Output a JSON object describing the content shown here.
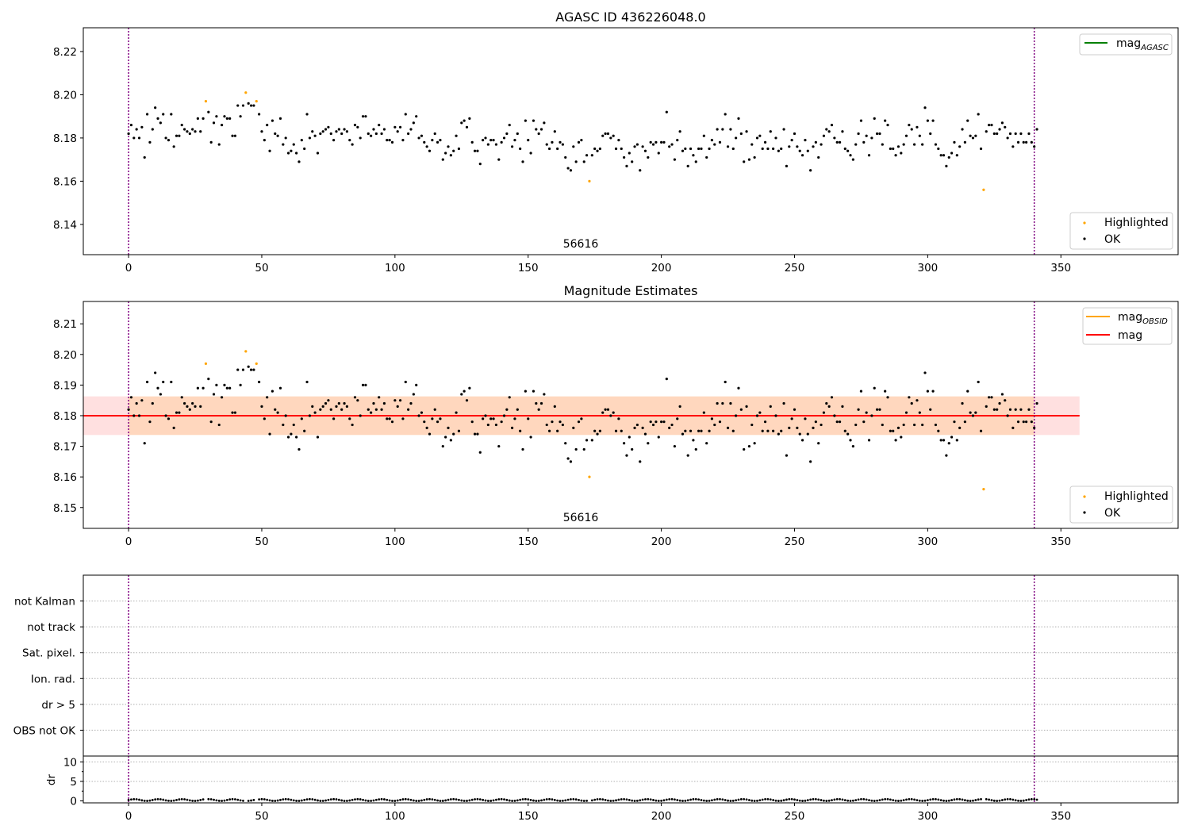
{
  "chart_data": [
    {
      "type": "scatter",
      "title": "AGASC ID 436226048.0",
      "annotation": "56616",
      "xlim": [
        -17,
        394
      ],
      "ylim": [
        8.126,
        8.231
      ],
      "xticks": [
        0,
        50,
        100,
        150,
        200,
        250,
        300,
        350
      ],
      "yticks": [
        8.14,
        8.16,
        8.18,
        8.2,
        8.22
      ],
      "ytick_labels": [
        "8.14",
        "8.16",
        "8.18",
        "8.20",
        "8.22"
      ],
      "vlines": [
        0,
        340
      ],
      "legends": [
        {
          "placement": "upper right",
          "entries": [
            {
              "label": "mag",
              "subscript": "AGASC",
              "style": "line",
              "color": "#008000"
            }
          ]
        },
        {
          "placement": "lower right",
          "entries": [
            {
              "label": "Highlighted",
              "style": "dot",
              "color": "#ffa500"
            },
            {
              "label": "OK",
              "style": "dot",
              "color": "#000000"
            }
          ]
        }
      ],
      "series": [
        {
          "name": "Highlighted",
          "color": "#ffa500",
          "x": [
            29,
            44,
            48,
            173,
            321
          ],
          "y": [
            8.197,
            8.201,
            8.197,
            8.16,
            8.156
          ]
        },
        {
          "name": "OK",
          "color": "#000000",
          "points_ref": "ok_points"
        }
      ]
    },
    {
      "type": "scatter",
      "title": "Magnitude Estimates",
      "annotation": "56616",
      "xlim": [
        -17,
        394
      ],
      "ylim": [
        8.1432,
        8.2173
      ],
      "xticks": [
        0,
        50,
        100,
        150,
        200,
        250,
        300,
        350
      ],
      "yticks": [
        8.15,
        8.16,
        8.17,
        8.18,
        8.19,
        8.2,
        8.21
      ],
      "ytick_labels": [
        "8.15",
        "8.16",
        "8.17",
        "8.18",
        "8.19",
        "8.20",
        "8.21"
      ],
      "vlines": [
        0,
        340
      ],
      "mag": {
        "value": 8.18,
        "color": "#ff0000",
        "band": [
          8.1737,
          8.1863
        ],
        "x_range": [
          -17,
          357
        ]
      },
      "mag_obsid": {
        "value": 8.18,
        "color": "#ffa500",
        "band": [
          8.1737,
          8.1863
        ],
        "x_range": [
          0,
          340
        ]
      },
      "legends": [
        {
          "placement": "upper right",
          "entries": [
            {
              "label": "mag",
              "subscript": "OBSID",
              "style": "line",
              "color": "#ffa500"
            },
            {
              "label": "mag",
              "style": "line",
              "color": "#ff0000"
            }
          ]
        },
        {
          "placement": "lower right",
          "entries": [
            {
              "label": "Highlighted",
              "style": "dot",
              "color": "#ffa500"
            },
            {
              "label": "OK",
              "style": "dot",
              "color": "#000000"
            }
          ]
        }
      ],
      "series": [
        {
          "name": "Highlighted",
          "color": "#ffa500",
          "x": [
            29,
            44,
            48,
            173,
            321
          ],
          "y": [
            8.197,
            8.201,
            8.197,
            8.16,
            8.156
          ]
        },
        {
          "name": "OK",
          "color": "#000000",
          "points_ref": "ok_points"
        }
      ]
    },
    {
      "type": "scatter",
      "title": "",
      "xlim": [
        -17,
        394
      ],
      "categories": [
        "OBS not OK",
        "dr > 5",
        "Ion. rad.",
        "Sat. pixel.",
        "not track",
        "not Kalman"
      ],
      "vlines": [
        0,
        340
      ],
      "flags": []
    },
    {
      "type": "scatter",
      "title": "",
      "ylabel": "dr",
      "xlim": [
        -17,
        394
      ],
      "ylim": [
        -0.5,
        11.5
      ],
      "xticks": [
        0,
        50,
        100,
        150,
        200,
        250,
        300,
        350
      ],
      "yticks": [
        0,
        5,
        10
      ],
      "vlines": [
        0,
        340
      ],
      "dr_range": [
        0.0,
        0.45
      ]
    }
  ],
  "ok_points": [
    [
      0,
      8.182
    ],
    [
      1,
      8.186
    ],
    [
      2,
      8.18
    ],
    [
      3,
      8.184
    ],
    [
      4,
      8.18
    ],
    [
      5,
      8.185
    ],
    [
      6,
      8.171
    ],
    [
      7,
      8.191
    ],
    [
      8,
      8.178
    ],
    [
      9,
      8.184
    ],
    [
      10,
      8.194
    ],
    [
      11,
      8.189
    ],
    [
      12,
      8.187
    ],
    [
      13,
      8.191
    ],
    [
      14,
      8.18
    ],
    [
      15,
      8.179
    ],
    [
      16,
      8.191
    ],
    [
      17,
      8.176
    ],
    [
      18,
      8.181
    ],
    [
      19,
      8.181
    ],
    [
      20,
      8.186
    ],
    [
      21,
      8.184
    ],
    [
      22,
      8.183
    ],
    [
      23,
      8.182
    ],
    [
      24,
      8.184
    ],
    [
      25,
      8.183
    ],
    [
      26,
      8.189
    ],
    [
      27,
      8.183
    ],
    [
      28,
      8.189
    ],
    [
      30,
      8.192
    ],
    [
      31,
      8.178
    ],
    [
      32,
      8.187
    ],
    [
      33,
      8.19
    ],
    [
      34,
      8.177
    ],
    [
      35,
      8.186
    ],
    [
      36,
      8.19
    ],
    [
      37,
      8.189
    ],
    [
      38,
      8.189
    ],
    [
      39,
      8.181
    ],
    [
      40,
      8.181
    ],
    [
      41,
      8.195
    ],
    [
      42,
      8.19
    ],
    [
      43,
      8.195
    ],
    [
      45,
      8.196
    ],
    [
      46,
      8.195
    ],
    [
      47,
      8.195
    ],
    [
      49,
      8.191
    ],
    [
      50,
      8.183
    ],
    [
      51,
      8.179
    ],
    [
      52,
      8.186
    ],
    [
      53,
      8.174
    ],
    [
      54,
      8.188
    ],
    [
      55,
      8.182
    ],
    [
      56,
      8.181
    ],
    [
      57,
      8.189
    ],
    [
      58,
      8.177
    ],
    [
      59,
      8.18
    ],
    [
      60,
      8.173
    ],
    [
      61,
      8.174
    ],
    [
      62,
      8.177
    ],
    [
      63,
      8.173
    ],
    [
      64,
      8.169
    ],
    [
      65,
      8.179
    ],
    [
      66,
      8.175
    ],
    [
      67,
      8.191
    ],
    [
      68,
      8.18
    ],
    [
      69,
      8.183
    ],
    [
      70,
      8.181
    ],
    [
      71,
      8.173
    ],
    [
      72,
      8.182
    ],
    [
      73,
      8.183
    ],
    [
      74,
      8.184
    ],
    [
      75,
      8.185
    ],
    [
      76,
      8.182
    ],
    [
      77,
      8.179
    ],
    [
      78,
      8.183
    ],
    [
      79,
      8.184
    ],
    [
      80,
      8.182
    ],
    [
      81,
      8.184
    ],
    [
      82,
      8.183
    ],
    [
      83,
      8.179
    ],
    [
      84,
      8.177
    ],
    [
      85,
      8.186
    ],
    [
      86,
      8.185
    ],
    [
      87,
      8.18
    ],
    [
      88,
      8.19
    ],
    [
      89,
      8.19
    ],
    [
      90,
      8.182
    ],
    [
      91,
      8.181
    ],
    [
      92,
      8.184
    ],
    [
      93,
      8.182
    ],
    [
      94,
      8.186
    ],
    [
      95,
      8.182
    ],
    [
      96,
      8.184
    ],
    [
      97,
      8.179
    ],
    [
      98,
      8.179
    ],
    [
      99,
      8.178
    ],
    [
      100,
      8.185
    ],
    [
      101,
      8.183
    ],
    [
      102,
      8.185
    ],
    [
      103,
      8.179
    ],
    [
      104,
      8.191
    ],
    [
      105,
      8.182
    ],
    [
      106,
      8.184
    ],
    [
      107,
      8.187
    ],
    [
      108,
      8.19
    ],
    [
      109,
      8.18
    ],
    [
      110,
      8.181
    ],
    [
      111,
      8.178
    ],
    [
      112,
      8.176
    ],
    [
      113,
      8.174
    ],
    [
      114,
      8.179
    ],
    [
      115,
      8.182
    ],
    [
      116,
      8.178
    ],
    [
      117,
      8.179
    ],
    [
      118,
      8.17
    ],
    [
      119,
      8.173
    ],
    [
      120,
      8.176
    ],
    [
      121,
      8.172
    ],
    [
      122,
      8.174
    ],
    [
      123,
      8.181
    ],
    [
      124,
      8.175
    ],
    [
      125,
      8.187
    ],
    [
      126,
      8.188
    ],
    [
      127,
      8.185
    ],
    [
      128,
      8.189
    ],
    [
      129,
      8.178
    ],
    [
      130,
      8.174
    ],
    [
      131,
      8.174
    ],
    [
      132,
      8.168
    ],
    [
      133,
      8.179
    ],
    [
      134,
      8.18
    ],
    [
      135,
      8.177
    ],
    [
      136,
      8.179
    ],
    [
      137,
      8.179
    ],
    [
      138,
      8.177
    ],
    [
      139,
      8.17
    ],
    [
      140,
      8.178
    ],
    [
      141,
      8.18
    ],
    [
      142,
      8.182
    ],
    [
      143,
      8.186
    ],
    [
      144,
      8.176
    ],
    [
      145,
      8.179
    ],
    [
      146,
      8.182
    ],
    [
      147,
      8.175
    ],
    [
      148,
      8.169
    ],
    [
      149,
      8.188
    ],
    [
      150,
      8.179
    ],
    [
      151,
      8.173
    ],
    [
      152,
      8.188
    ],
    [
      153,
      8.184
    ],
    [
      154,
      8.182
    ],
    [
      155,
      8.184
    ],
    [
      156,
      8.187
    ],
    [
      157,
      8.177
    ],
    [
      158,
      8.175
    ],
    [
      159,
      8.178
    ],
    [
      160,
      8.183
    ],
    [
      161,
      8.175
    ],
    [
      162,
      8.178
    ],
    [
      163,
      8.177
    ],
    [
      164,
      8.171
    ],
    [
      165,
      8.166
    ],
    [
      166,
      8.165
    ],
    [
      167,
      8.176
    ],
    [
      168,
      8.169
    ],
    [
      169,
      8.178
    ],
    [
      170,
      8.179
    ],
    [
      171,
      8.169
    ],
    [
      172,
      8.172
    ],
    [
      174,
      8.172
    ],
    [
      175,
      8.175
    ],
    [
      176,
      8.174
    ],
    [
      177,
      8.175
    ],
    [
      178,
      8.181
    ],
    [
      179,
      8.182
    ],
    [
      180,
      8.182
    ],
    [
      181,
      8.18
    ],
    [
      182,
      8.181
    ],
    [
      183,
      8.175
    ],
    [
      184,
      8.179
    ],
    [
      185,
      8.175
    ],
    [
      186,
      8.171
    ],
    [
      187,
      8.167
    ],
    [
      188,
      8.173
    ],
    [
      189,
      8.169
    ],
    [
      190,
      8.176
    ],
    [
      191,
      8.177
    ],
    [
      192,
      8.165
    ],
    [
      193,
      8.176
    ],
    [
      194,
      8.174
    ],
    [
      195,
      8.171
    ],
    [
      196,
      8.178
    ],
    [
      197,
      8.177
    ],
    [
      198,
      8.178
    ],
    [
      199,
      8.173
    ],
    [
      200,
      8.178
    ],
    [
      201,
      8.178
    ],
    [
      202,
      8.192
    ],
    [
      203,
      8.176
    ],
    [
      204,
      8.177
    ],
    [
      205,
      8.17
    ],
    [
      206,
      8.179
    ],
    [
      207,
      8.183
    ],
    [
      208,
      8.174
    ],
    [
      209,
      8.175
    ],
    [
      210,
      8.167
    ],
    [
      211,
      8.175
    ],
    [
      212,
      8.172
    ],
    [
      213,
      8.169
    ],
    [
      214,
      8.175
    ],
    [
      215,
      8.175
    ],
    [
      216,
      8.181
    ],
    [
      217,
      8.171
    ],
    [
      218,
      8.175
    ],
    [
      219,
      8.179
    ],
    [
      220,
      8.177
    ],
    [
      221,
      8.184
    ],
    [
      222,
      8.178
    ],
    [
      223,
      8.184
    ],
    [
      224,
      8.191
    ],
    [
      225,
      8.176
    ],
    [
      226,
      8.184
    ],
    [
      227,
      8.175
    ],
    [
      228,
      8.18
    ],
    [
      229,
      8.189
    ],
    [
      230,
      8.182
    ],
    [
      231,
      8.169
    ],
    [
      232,
      8.183
    ],
    [
      233,
      8.17
    ],
    [
      234,
      8.177
    ],
    [
      235,
      8.171
    ],
    [
      236,
      8.18
    ],
    [
      237,
      8.181
    ],
    [
      238,
      8.175
    ],
    [
      239,
      8.178
    ],
    [
      240,
      8.175
    ],
    [
      241,
      8.183
    ],
    [
      242,
      8.175
    ],
    [
      243,
      8.18
    ],
    [
      244,
      8.174
    ],
    [
      245,
      8.175
    ],
    [
      246,
      8.184
    ],
    [
      247,
      8.167
    ],
    [
      248,
      8.176
    ],
    [
      249,
      8.179
    ],
    [
      250,
      8.182
    ],
    [
      251,
      8.176
    ],
    [
      252,
      8.174
    ],
    [
      253,
      8.172
    ],
    [
      254,
      8.179
    ],
    [
      255,
      8.174
    ],
    [
      256,
      8.165
    ],
    [
      257,
      8.176
    ],
    [
      258,
      8.178
    ],
    [
      259,
      8.171
    ],
    [
      260,
      8.177
    ],
    [
      261,
      8.181
    ],
    [
      262,
      8.184
    ],
    [
      263,
      8.183
    ],
    [
      264,
      8.186
    ],
    [
      265,
      8.18
    ],
    [
      266,
      8.178
    ],
    [
      267,
      8.178
    ],
    [
      268,
      8.183
    ],
    [
      269,
      8.175
    ],
    [
      270,
      8.174
    ],
    [
      271,
      8.172
    ],
    [
      272,
      8.17
    ],
    [
      273,
      8.177
    ],
    [
      274,
      8.182
    ],
    [
      275,
      8.188
    ],
    [
      276,
      8.178
    ],
    [
      277,
      8.181
    ],
    [
      278,
      8.172
    ],
    [
      279,
      8.18
    ],
    [
      280,
      8.189
    ],
    [
      281,
      8.182
    ],
    [
      282,
      8.182
    ],
    [
      283,
      8.177
    ],
    [
      284,
      8.188
    ],
    [
      285,
      8.186
    ],
    [
      286,
      8.175
    ],
    [
      287,
      8.175
    ],
    [
      288,
      8.172
    ],
    [
      289,
      8.176
    ],
    [
      290,
      8.173
    ],
    [
      291,
      8.177
    ],
    [
      292,
      8.181
    ],
    [
      293,
      8.186
    ],
    [
      294,
      8.184
    ],
    [
      295,
      8.177
    ],
    [
      296,
      8.185
    ],
    [
      297,
      8.181
    ],
    [
      298,
      8.177
    ],
    [
      299,
      8.194
    ],
    [
      300,
      8.188
    ],
    [
      301,
      8.182
    ],
    [
      302,
      8.188
    ],
    [
      303,
      8.177
    ],
    [
      304,
      8.175
    ],
    [
      305,
      8.172
    ],
    [
      306,
      8.172
    ],
    [
      307,
      8.167
    ],
    [
      308,
      8.171
    ],
    [
      309,
      8.173
    ],
    [
      310,
      8.178
    ],
    [
      311,
      8.172
    ],
    [
      312,
      8.176
    ],
    [
      313,
      8.184
    ],
    [
      314,
      8.178
    ],
    [
      315,
      8.188
    ],
    [
      316,
      8.181
    ],
    [
      317,
      8.18
    ],
    [
      318,
      8.181
    ],
    [
      319,
      8.191
    ],
    [
      320,
      8.175
    ],
    [
      322,
      8.183
    ],
    [
      323,
      8.186
    ],
    [
      324,
      8.186
    ],
    [
      325,
      8.182
    ],
    [
      326,
      8.182
    ],
    [
      327,
      8.184
    ],
    [
      328,
      8.187
    ],
    [
      329,
      8.185
    ],
    [
      330,
      8.18
    ],
    [
      331,
      8.182
    ],
    [
      332,
      8.176
    ],
    [
      333,
      8.182
    ],
    [
      334,
      8.178
    ],
    [
      335,
      8.182
    ],
    [
      336,
      8.178
    ],
    [
      337,
      8.178
    ],
    [
      338,
      8.182
    ],
    [
      339,
      8.178
    ],
    [
      340,
      8.176
    ],
    [
      341,
      8.184
    ]
  ]
}
